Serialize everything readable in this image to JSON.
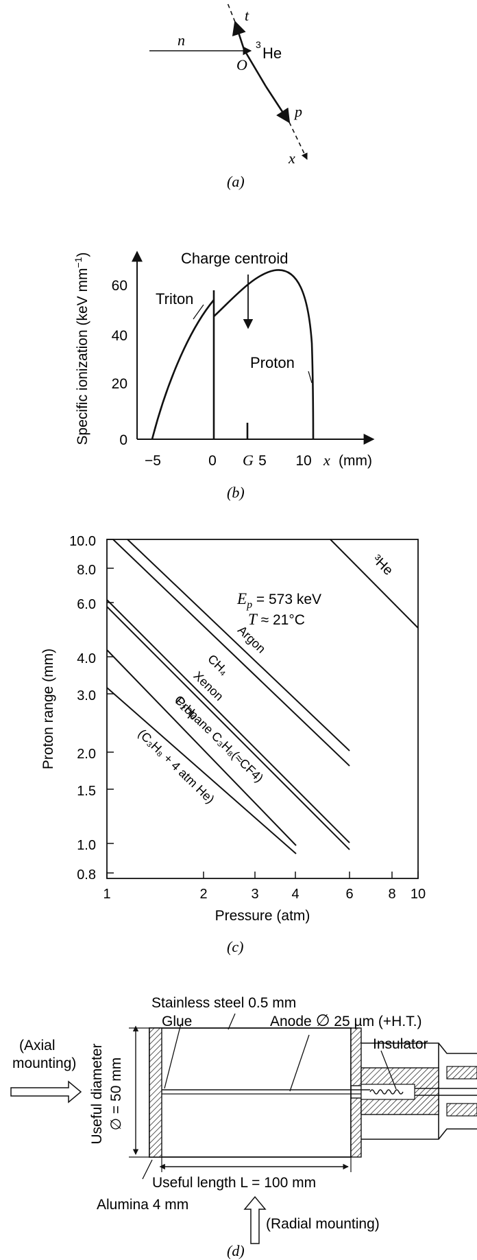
{
  "panels": {
    "a": {
      "caption": "(a)",
      "labels": {
        "n": "n",
        "t": "t",
        "he_sup": "3",
        "he": "He",
        "o": "O",
        "p": "p",
        "x": "x"
      }
    },
    "b": {
      "caption": "(b)",
      "labels": {
        "ylabel": "Specific ionization (keV mm",
        "ylabel_sup": "−1",
        "ylabel_end": ")",
        "charge_centroid": "Charge centroid",
        "triton": "Triton",
        "proton": "Proton",
        "x_axis_var": "x",
        "x_axis_unit": "(mm)",
        "g": "G"
      },
      "chart_data": {
        "type": "line",
        "xlabel": "x (mm)",
        "ylabel": "Specific ionization (keV mm−1)",
        "xticks": [
          "−5",
          "0",
          "5",
          "10"
        ],
        "yticks": [
          "0",
          "20",
          "40",
          "60"
        ],
        "series": [
          {
            "name": "Triton",
            "x": [
              -5.2,
              -4,
              -3,
              -2,
              -1,
              -0.5,
              0
            ],
            "y": [
              0,
              14,
              26,
              37,
              45,
              49,
              53
            ]
          },
          {
            "name": "Proton",
            "x": [
              0,
              1,
              2,
              3,
              4,
              5,
              6,
              7,
              8,
              9,
              9.8,
              10.5,
              10.6
            ],
            "y": [
              46,
              52,
              56,
              59,
              61,
              63,
              63.5,
              63,
              60,
              54,
              45,
              18,
              0
            ]
          }
        ]
      }
    },
    "c": {
      "caption": "(c)",
      "labels": {
        "ylabel": "Proton range (mm)",
        "xlabel": "Pressure (atm)",
        "ep_var": "E",
        "ep_sub": "p",
        "ep_val": " = 573 keV",
        "t_var": "T",
        "t_val": " ≈ 21°C",
        "he3": "³He",
        "argon": "Argon",
        "ch4": "CH₄",
        "xenon": "Xenon",
        "c2h6": "C₂H₆",
        "propane": "Propane C₃H₈(≈CF4)",
        "mix": "(C₃H₈ + 4 atm He)"
      },
      "chart_data": {
        "type": "line",
        "xlabel": "Pressure (atm)",
        "ylabel": "Proton range (mm)",
        "xscale": "log",
        "yscale": "log",
        "xlim": [
          1,
          10
        ],
        "ylim": [
          0.7,
          10
        ],
        "xticks": [
          "1",
          "2",
          "3",
          "4",
          "6",
          "8",
          "10"
        ],
        "yticks": [
          "0.8",
          "1.0",
          "1.5",
          "2.0",
          "3.0",
          "4.0",
          "6.0",
          "8.0",
          "10.0"
        ],
        "series": [
          {
            "name": "Argon",
            "x": [
              1.22,
              6.0
            ],
            "y": [
              10.0,
              1.88
            ]
          },
          {
            "name": "CH₄",
            "x": [
              1.12,
              6.0
            ],
            "y": [
              10.0,
              1.66
            ]
          },
          {
            "name": "Xenon",
            "x": [
              1.0,
              6.0
            ],
            "y": [
              6.2,
              1.01
            ]
          },
          {
            "name": "C₂H₆",
            "x": [
              1.0,
              6.0
            ],
            "y": [
              5.9,
              0.97
            ]
          },
          {
            "name": "Propane C₃H₈(≈CF4)",
            "x": [
              1.0,
              3.9
            ],
            "y": [
              4.2,
              0.98
            ]
          },
          {
            "name": "(C₃H₈ + 4 atm He)",
            "x": [
              1.0,
              3.9
            ],
            "y": [
              3.15,
              0.92
            ]
          },
          {
            "name": "³He",
            "x": [
              5.3,
              10.0
            ],
            "y": [
              10.0,
              5.0
            ]
          }
        ]
      }
    },
    "d": {
      "caption": "(d)",
      "labels": {
        "stainless": "Stainless steel 0.5 mm",
        "glue": "Glue",
        "anode_a": "Anode ",
        "anode_phi": "∅",
        "anode_b": " 25 µm (+H.T.)",
        "insulator": "Insulator",
        "axial_1": "(Axial",
        "axial_2": "mounting)",
        "useful_diameter": "Useful diameter",
        "phi_eq": "∅ = 50 mm",
        "useful_length": "Useful length L = 100 mm",
        "alumina": "Alumina 4 mm",
        "radial": "(Radial mounting)"
      }
    }
  }
}
